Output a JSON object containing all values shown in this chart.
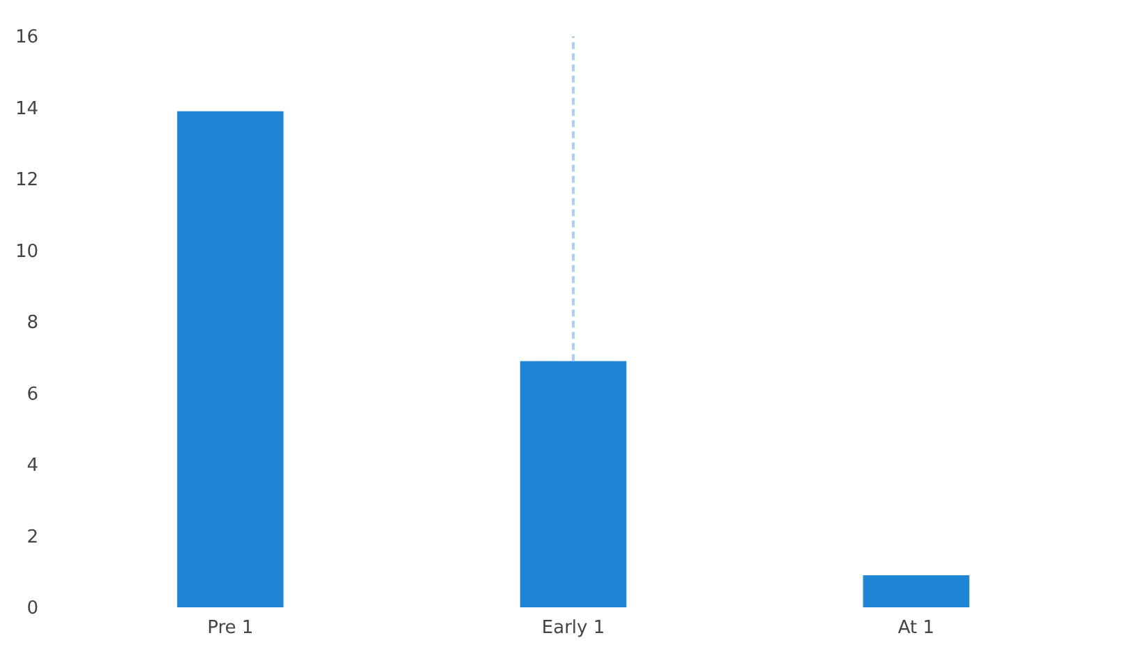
{
  "chart_data": {
    "type": "bar",
    "categories": [
      "Pre 1",
      "Early 1",
      "At 1"
    ],
    "values": [
      13.9,
      6.9,
      0.9
    ],
    "color": "#1f86d6",
    "errors": [
      null,
      [
        6.9,
        16
      ],
      null
    ],
    "ylim": [
      0,
      16
    ],
    "yticks": [
      0,
      2,
      4,
      6,
      8,
      10,
      12,
      14,
      16
    ],
    "grid": false
  }
}
